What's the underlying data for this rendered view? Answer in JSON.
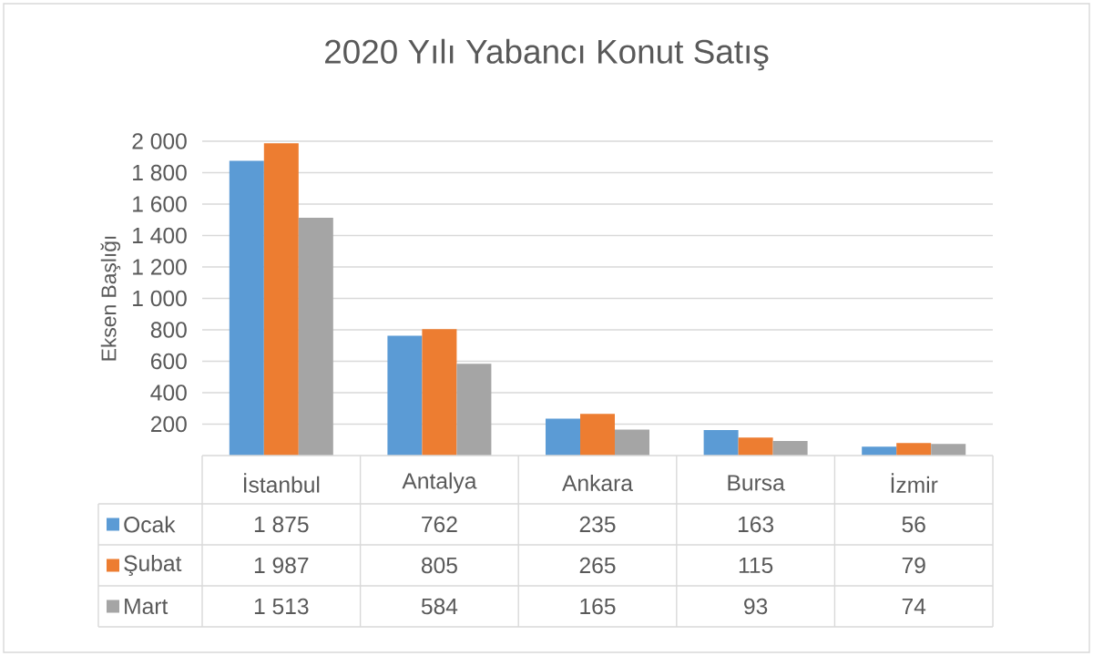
{
  "chart_data": {
    "type": "bar",
    "title": "2020 Yılı Yabancı Konut Satış",
    "ylabel": "Eksen Başlığı",
    "categories": [
      "İstanbul",
      "Antalya",
      "Ankara",
      "Bursa",
      "İzmir"
    ],
    "series": [
      {
        "name": "Ocak",
        "color": "#5b9bd5",
        "values": [
          1875,
          762,
          235,
          163,
          56
        ],
        "value_labels": [
          "1 875",
          "762",
          "235",
          "163",
          "56"
        ]
      },
      {
        "name": "Şubat",
        "color": "#ed7d31",
        "values": [
          1987,
          805,
          265,
          115,
          79
        ],
        "value_labels": [
          "1 987",
          "805",
          "265",
          "115",
          "79"
        ]
      },
      {
        "name": "Mart",
        "color": "#a5a5a5",
        "values": [
          1513,
          584,
          165,
          93,
          74
        ],
        "value_labels": [
          "1 513",
          "584",
          "165",
          "93",
          "74"
        ]
      }
    ],
    "ylim": [
      0,
      2000
    ],
    "yticks": [
      200,
      400,
      600,
      800,
      {
        "value": 1000,
        "label": "1 000"
      },
      {
        "value": 1200,
        "label": "1 200"
      },
      {
        "value": 1400,
        "label": "1 400"
      },
      {
        "value": 1600,
        "label": "1 600"
      },
      {
        "value": 1800,
        "label": "1 800"
      },
      {
        "value": 2000,
        "label": "2 000"
      }
    ],
    "grid": "y",
    "legend": "bottom"
  }
}
